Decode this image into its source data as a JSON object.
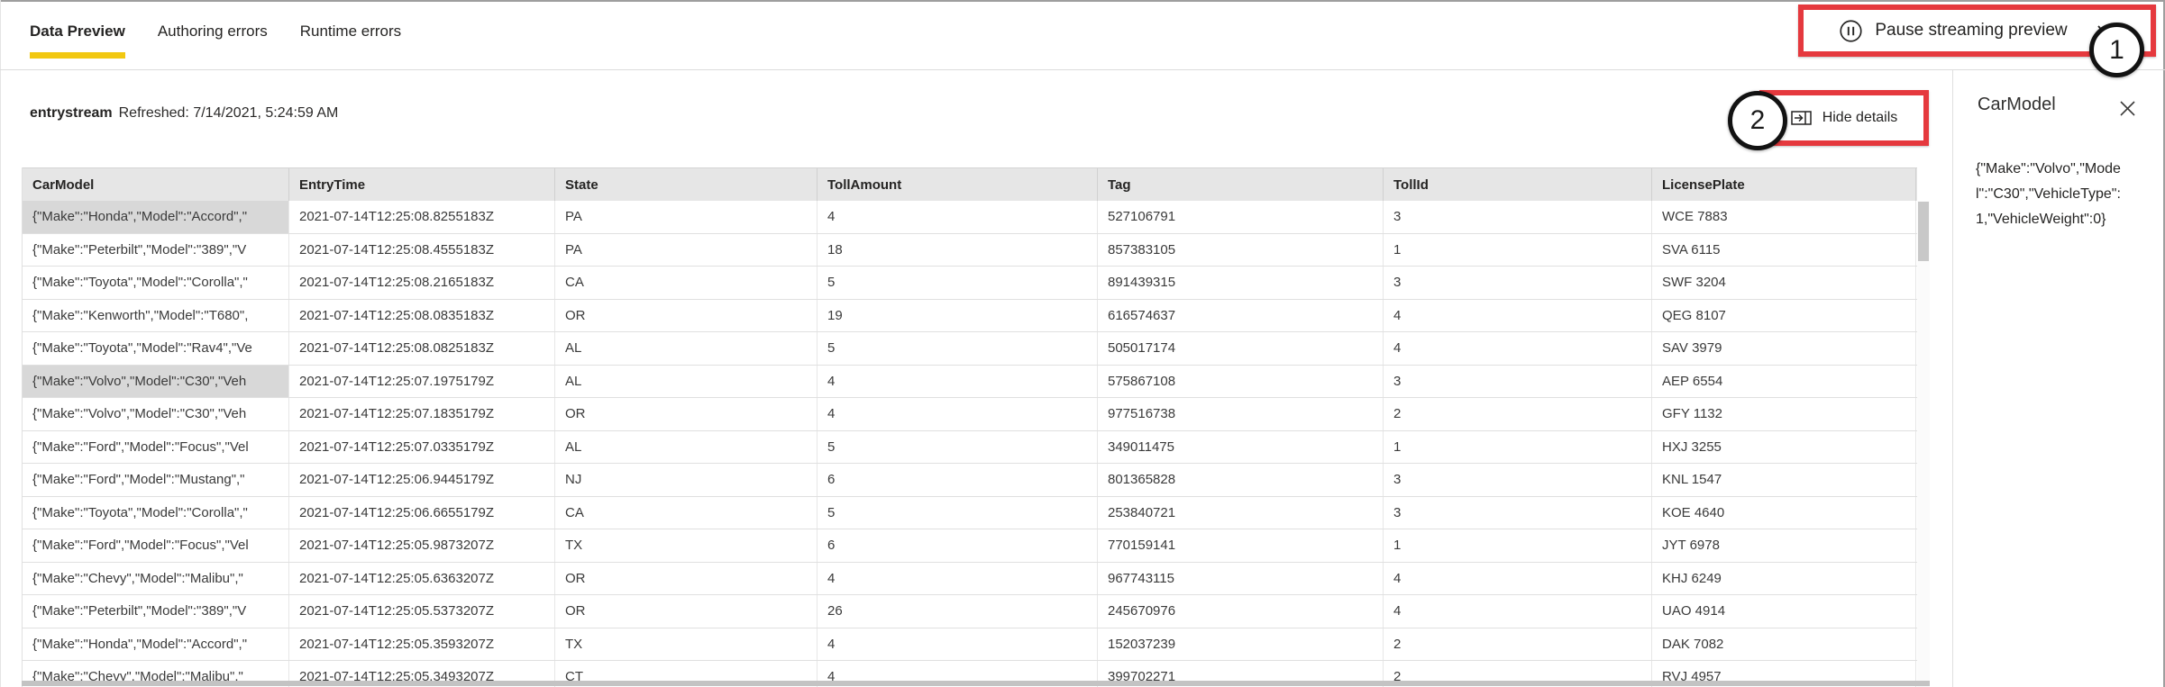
{
  "tabs": [
    {
      "label": "Data Preview",
      "active": true
    },
    {
      "label": "Authoring errors",
      "active": false
    },
    {
      "label": "Runtime errors",
      "active": false
    }
  ],
  "toolbar": {
    "pause_button_label": "Pause streaming preview",
    "hide_details_label": "Hide details"
  },
  "annotations": {
    "step1": "1",
    "step2": "2"
  },
  "stream_info": {
    "name": "entrystream",
    "refreshed": "Refreshed: 7/14/2021, 5:24:59 AM"
  },
  "details_panel": {
    "title": "CarModel",
    "value": "{\"Make\":\"Volvo\",\"Model\":\"C30\",\"VehicleType\":1,\"VehicleWeight\":0}"
  },
  "table": {
    "columns": [
      "CarModel",
      "EntryTime",
      "State",
      "TollAmount",
      "Tag",
      "TollId",
      "LicensePlate"
    ],
    "rows": [
      [
        "{\"Make\":\"Honda\",\"Model\":\"Accord\",\"",
        "2021-07-14T12:25:08.8255183Z",
        "PA",
        "4",
        "527106791",
        "3",
        "WCE 7883"
      ],
      [
        "{\"Make\":\"Peterbilt\",\"Model\":\"389\",\"V",
        "2021-07-14T12:25:08.4555183Z",
        "PA",
        "18",
        "857383105",
        "1",
        "SVA 6115"
      ],
      [
        "{\"Make\":\"Toyota\",\"Model\":\"Corolla\",\"",
        "2021-07-14T12:25:08.2165183Z",
        "CA",
        "5",
        "891439315",
        "3",
        "SWF 3204"
      ],
      [
        "{\"Make\":\"Kenworth\",\"Model\":\"T680\",",
        "2021-07-14T12:25:08.0835183Z",
        "OR",
        "19",
        "616574637",
        "4",
        "QEG 8107"
      ],
      [
        "{\"Make\":\"Toyota\",\"Model\":\"Rav4\",\"Ve",
        "2021-07-14T12:25:08.0825183Z",
        "AL",
        "5",
        "505017174",
        "4",
        "SAV 3979"
      ],
      [
        "{\"Make\":\"Volvo\",\"Model\":\"C30\",\"Veh",
        "2021-07-14T12:25:07.1975179Z",
        "AL",
        "4",
        "575867108",
        "3",
        "AEP 6554"
      ],
      [
        "{\"Make\":\"Volvo\",\"Model\":\"C30\",\"Veh",
        "2021-07-14T12:25:07.1835179Z",
        "OR",
        "4",
        "977516738",
        "2",
        "GFY 1132"
      ],
      [
        "{\"Make\":\"Ford\",\"Model\":\"Focus\",\"Vel",
        "2021-07-14T12:25:07.0335179Z",
        "AL",
        "5",
        "349011475",
        "1",
        "HXJ 3255"
      ],
      [
        "{\"Make\":\"Ford\",\"Model\":\"Mustang\",\"",
        "2021-07-14T12:25:06.9445179Z",
        "NJ",
        "6",
        "801365828",
        "3",
        "KNL 1547"
      ],
      [
        "{\"Make\":\"Toyota\",\"Model\":\"Corolla\",\"",
        "2021-07-14T12:25:06.6655179Z",
        "CA",
        "5",
        "253840721",
        "3",
        "KOE 4640"
      ],
      [
        "{\"Make\":\"Ford\",\"Model\":\"Focus\",\"Vel",
        "2021-07-14T12:25:05.9873207Z",
        "TX",
        "6",
        "770159141",
        "1",
        "JYT 6978"
      ],
      [
        "{\"Make\":\"Chevy\",\"Model\":\"Malibu\",\"",
        "2021-07-14T12:25:05.6363207Z",
        "OR",
        "4",
        "967743115",
        "4",
        "KHJ 6249"
      ],
      [
        "{\"Make\":\"Peterbilt\",\"Model\":\"389\",\"V",
        "2021-07-14T12:25:05.5373207Z",
        "OR",
        "26",
        "245670976",
        "4",
        "UAO 4914"
      ],
      [
        "{\"Make\":\"Honda\",\"Model\":\"Accord\",\"",
        "2021-07-14T12:25:05.3593207Z",
        "TX",
        "4",
        "152037239",
        "2",
        "DAK 7082"
      ],
      [
        "{\"Make\":\"Chevy\",\"Model\":\"Malibu\",\"",
        "2021-07-14T12:25:05.3493207Z",
        "CT",
        "4",
        "399702271",
        "2",
        "RVJ 4957"
      ]
    ],
    "highlighted_cells": [
      {
        "row": 0,
        "col": 0
      },
      {
        "row": 5,
        "col": 0
      }
    ]
  },
  "colors": {
    "accent_yellow": "#F2C811",
    "annotation_red": "#E5393E",
    "header_gray": "#e6e6e6",
    "selected_cell_gray": "#d8d8d8"
  }
}
